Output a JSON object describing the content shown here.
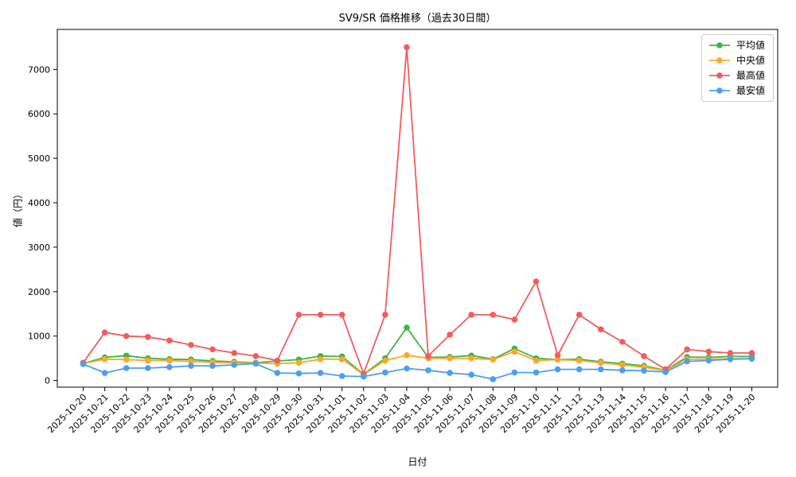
{
  "chart_data": {
    "type": "line",
    "title": "SV9/SR 価格推移（過去30日間）",
    "xlabel": "日付",
    "ylabel": "値（円）",
    "ylim": [
      -150,
      7900
    ],
    "yticks": [
      0,
      1000,
      2000,
      3000,
      4000,
      5000,
      6000,
      7000
    ],
    "grid": false,
    "legend_position": "upper right",
    "categories": [
      "2025-10-20",
      "2025-10-21",
      "2025-10-22",
      "2025-10-23",
      "2025-10-24",
      "2025-10-25",
      "2025-10-26",
      "2025-10-27",
      "2025-10-28",
      "2025-10-29",
      "2025-10-30",
      "2025-10-31",
      "2025-11-01",
      "2025-11-02",
      "2025-11-03",
      "2025-11-04",
      "2025-11-05",
      "2025-11-06",
      "2025-11-07",
      "2025-11-08",
      "2025-11-09",
      "2025-11-10",
      "2025-11-11",
      "2025-11-12",
      "2025-11-13",
      "2025-11-14",
      "2025-11-15",
      "2025-11-16",
      "2025-11-17",
      "2025-11-18",
      "2025-11-19",
      "2025-11-20"
    ],
    "series": [
      {
        "id": "avg",
        "name": "平均値",
        "color": "#3db54a",
        "values": [
          380,
          520,
          560,
          500,
          480,
          470,
          440,
          420,
          400,
          440,
          470,
          550,
          540,
          140,
          500,
          1190,
          520,
          530,
          560,
          480,
          720,
          500,
          470,
          480,
          420,
          380,
          330,
          230,
          530,
          520,
          540,
          540
        ]
      },
      {
        "id": "median",
        "name": "中央値",
        "color": "#ffa726",
        "values": [
          380,
          480,
          470,
          450,
          450,
          430,
          410,
          400,
          390,
          380,
          400,
          480,
          480,
          130,
          450,
          570,
          500,
          500,
          500,
          470,
          650,
          450,
          470,
          450,
          400,
          350,
          300,
          220,
          480,
          480,
          490,
          490
        ]
      },
      {
        "id": "max",
        "name": "最高値",
        "color": "#f45b5b",
        "values": [
          400,
          1080,
          1000,
          980,
          900,
          800,
          700,
          620,
          550,
          450,
          1480,
          1480,
          1480,
          150,
          1480,
          7500,
          550,
          1030,
          1480,
          1480,
          1370,
          2230,
          570,
          1480,
          1150,
          870,
          550,
          250,
          700,
          650,
          620,
          620
        ]
      },
      {
        "id": "min",
        "name": "最安値",
        "color": "#4b9ff2",
        "values": [
          370,
          170,
          280,
          280,
          300,
          330,
          330,
          350,
          380,
          170,
          160,
          170,
          100,
          90,
          180,
          270,
          230,
          170,
          130,
          30,
          180,
          180,
          250,
          250,
          250,
          230,
          220,
          190,
          430,
          450,
          480,
          490
        ]
      }
    ]
  }
}
